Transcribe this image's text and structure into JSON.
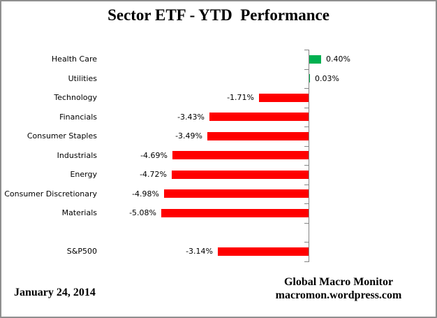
{
  "chart_data": {
    "type": "bar",
    "orientation": "horizontal",
    "title": "Sector ETF - YTD  Performance",
    "value_format": "percent",
    "entries": [
      {
        "label": "Health Care",
        "value": 0.4,
        "display": "0.40%"
      },
      {
        "label": "Utilities",
        "value": 0.03,
        "display": "0.03%"
      },
      {
        "label": "Technology",
        "value": -1.71,
        "display": "-1.71%"
      },
      {
        "label": "Financials",
        "value": -3.43,
        "display": "-3.43%"
      },
      {
        "label": "Consumer Staples",
        "value": -3.49,
        "display": "-3.49%"
      },
      {
        "label": "Industrials",
        "value": -4.69,
        "display": "-4.69%"
      },
      {
        "label": "Energy",
        "value": -4.72,
        "display": "-4.72%"
      },
      {
        "label": "Consumer Discretionary",
        "value": -4.98,
        "display": "-4.98%"
      },
      {
        "label": "Materials",
        "value": -5.08,
        "display": "-5.08%"
      },
      {
        "label": "",
        "value": null,
        "display": ""
      },
      {
        "label": "S&P500",
        "value": -3.14,
        "display": "-3.14%"
      }
    ],
    "positive_color": "#00B050",
    "negative_color": "#FF0000",
    "axis": {
      "zero_line": true,
      "zero_line_color": "#848484",
      "ticks": "category-boundaries",
      "gridlines": false,
      "value_axis_labels_visible": false
    },
    "legend": "none",
    "xlim": [
      -7.0,
      4.4
    ],
    "data_labels": "outside-end"
  },
  "footer": {
    "date": "January 24, 2014",
    "attribution_line1": "Global Macro Monitor",
    "attribution_line2": "macromon.wordpress.com"
  }
}
